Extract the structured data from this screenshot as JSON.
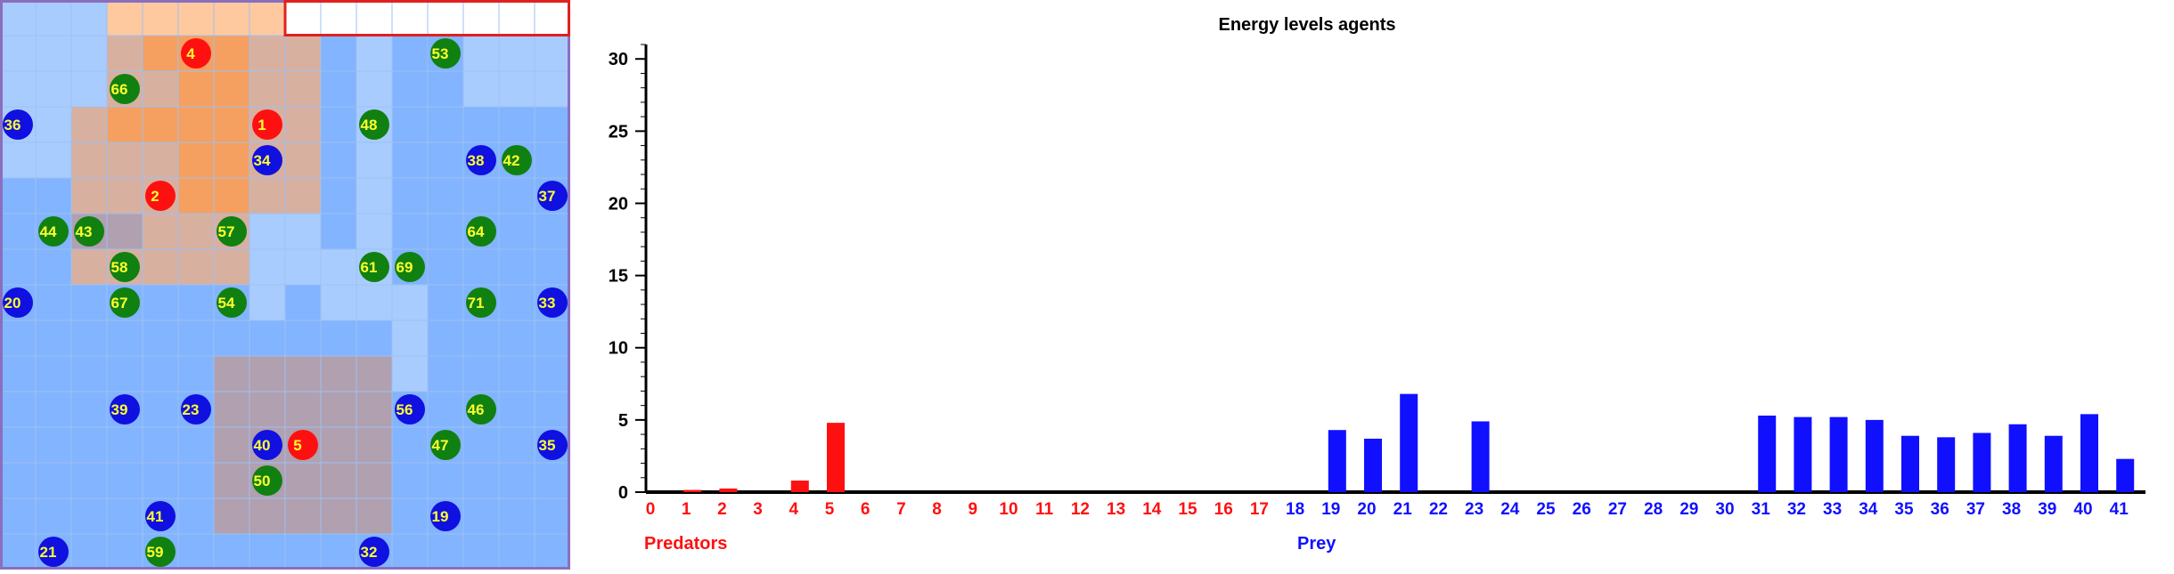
{
  "grid": {
    "cols": 16,
    "rows": 16,
    "colors": {
      "light": "#a9ccff",
      "mid": "#82b4ff",
      "dark": "#5c99ff",
      "white": "#ffffff",
      "peach": "#ffc9a0",
      "orange": "#f5a060",
      "tan": "#d8b0a0",
      "grey": "#b0a0b0",
      "border_top": "#e02020",
      "border": "#8a6fbf"
    },
    "cell_rows": [
      "LLLPPPPPWWWWWWWW",
      "LLLTOOOTTMLMMLLL",
      "LLLTTOOTTMLMMLLL",
      "LLTOOOOTTMLMMMMM",
      "LLTTTOOTTMLMMMMM",
      "MMTTTOOTTMLMMMMM",
      "MMGGTTTLLMLMMMMM",
      "MMTTTTTLLLLMMMMM",
      "MMMMMMMLMLLLMMMM",
      "MMMMMMMMMMMLMMMM",
      "MMMMMMGGGGGLMMMM",
      "MMMMMMGGGGGMMMMM",
      "MMMMMMGGGGGMMMMM",
      "MMMMMMGGGGGMMMMM",
      "MMMMMMGGGGGMMMMM",
      "MMMMMMMMMMMMMMMM"
    ],
    "agents": [
      {
        "id": "4",
        "kind": "predator",
        "col": 5.5,
        "row": 1.5
      },
      {
        "id": "1",
        "kind": "predator",
        "col": 7.5,
        "row": 3.5
      },
      {
        "id": "2",
        "kind": "predator",
        "col": 4.5,
        "row": 5.5
      },
      {
        "id": "5",
        "kind": "predator",
        "col": 8.5,
        "row": 12.5
      },
      {
        "id": "36",
        "kind": "prey",
        "col": 0.5,
        "row": 3.5
      },
      {
        "id": "34",
        "kind": "prey",
        "col": 7.5,
        "row": 4.5
      },
      {
        "id": "38",
        "kind": "prey",
        "col": 13.5,
        "row": 4.5
      },
      {
        "id": "37",
        "kind": "prey",
        "col": 15.5,
        "row": 5.5
      },
      {
        "id": "20",
        "kind": "prey",
        "col": 0.5,
        "row": 8.5
      },
      {
        "id": "33",
        "kind": "prey",
        "col": 15.5,
        "row": 8.5
      },
      {
        "id": "39",
        "kind": "prey",
        "col": 3.5,
        "row": 11.5
      },
      {
        "id": "23",
        "kind": "prey",
        "col": 5.5,
        "row": 11.5
      },
      {
        "id": "56",
        "kind": "prey",
        "col": 11.5,
        "row": 11.5
      },
      {
        "id": "40",
        "kind": "prey",
        "col": 7.5,
        "row": 12.5
      },
      {
        "id": "35",
        "kind": "prey",
        "col": 15.5,
        "row": 12.5
      },
      {
        "id": "41",
        "kind": "prey",
        "col": 4.5,
        "row": 14.5
      },
      {
        "id": "19",
        "kind": "prey",
        "col": 12.5,
        "row": 14.5
      },
      {
        "id": "21",
        "kind": "prey",
        "col": 1.5,
        "row": 15.5
      },
      {
        "id": "32",
        "kind": "prey",
        "col": 10.5,
        "row": 15.5
      },
      {
        "id": "53",
        "kind": "plant",
        "col": 12.5,
        "row": 1.5
      },
      {
        "id": "66",
        "kind": "plant",
        "col": 3.5,
        "row": 2.5
      },
      {
        "id": "48",
        "kind": "plant",
        "col": 10.5,
        "row": 3.5
      },
      {
        "id": "42",
        "kind": "plant",
        "col": 14.5,
        "row": 4.5
      },
      {
        "id": "44",
        "kind": "plant",
        "col": 1.5,
        "row": 6.5
      },
      {
        "id": "43",
        "kind": "plant",
        "col": 2.5,
        "row": 6.5
      },
      {
        "id": "57",
        "kind": "plant",
        "col": 6.5,
        "row": 6.5
      },
      {
        "id": "64",
        "kind": "plant",
        "col": 13.5,
        "row": 6.5
      },
      {
        "id": "58",
        "kind": "plant",
        "col": 3.5,
        "row": 7.5
      },
      {
        "id": "61",
        "kind": "plant",
        "col": 10.5,
        "row": 7.5
      },
      {
        "id": "69",
        "kind": "plant",
        "col": 11.5,
        "row": 7.5
      },
      {
        "id": "67",
        "kind": "plant",
        "col": 3.5,
        "row": 8.5
      },
      {
        "id": "54",
        "kind": "plant",
        "col": 6.5,
        "row": 8.5
      },
      {
        "id": "71",
        "kind": "plant",
        "col": 13.5,
        "row": 8.5
      },
      {
        "id": "46",
        "kind": "plant",
        "col": 13.5,
        "row": 11.5
      },
      {
        "id": "47",
        "kind": "plant",
        "col": 12.5,
        "row": 12.5
      },
      {
        "id": "50",
        "kind": "plant",
        "col": 7.5,
        "row": 13.5
      },
      {
        "id": "59",
        "kind": "plant",
        "col": 4.5,
        "row": 15.5
      }
    ],
    "agent_colors": {
      "predator": "#ff1010",
      "prey": "#1010e0",
      "plant": "#108010",
      "label": "#ffff30"
    }
  },
  "chart_data": {
    "type": "bar",
    "title": "Energy levels agents",
    "ylim": [
      0,
      31
    ],
    "yticks": [
      0,
      5,
      10,
      15,
      20,
      25,
      30
    ],
    "groups": [
      {
        "name": "Predators",
        "color": "#ff1010",
        "categories": [
          "0",
          "1",
          "2",
          "3",
          "4",
          "5",
          "6",
          "7",
          "8",
          "9",
          "10",
          "11",
          "12",
          "13",
          "14",
          "15",
          "16",
          "17"
        ],
        "values": [
          0,
          0.15,
          0.25,
          0,
          0.8,
          4.8,
          0,
          0,
          0,
          0,
          0,
          0,
          0,
          0,
          0,
          0,
          0,
          0
        ]
      },
      {
        "name": "Prey",
        "color": "#1010ff",
        "categories": [
          "18",
          "19",
          "20",
          "21",
          "22",
          "23",
          "24",
          "25",
          "26",
          "27",
          "28",
          "29",
          "30",
          "31",
          "32",
          "33",
          "34",
          "35",
          "36",
          "37",
          "38",
          "39",
          "40",
          "41"
        ],
        "values": [
          0,
          4.3,
          3.7,
          6.8,
          0,
          4.9,
          0,
          0,
          0,
          0,
          0,
          0,
          0,
          5.3,
          5.2,
          5.2,
          5.0,
          3.9,
          3.8,
          4.1,
          4.7,
          3.9,
          5.4,
          2.3
        ]
      }
    ],
    "axis_color": "#000000"
  }
}
